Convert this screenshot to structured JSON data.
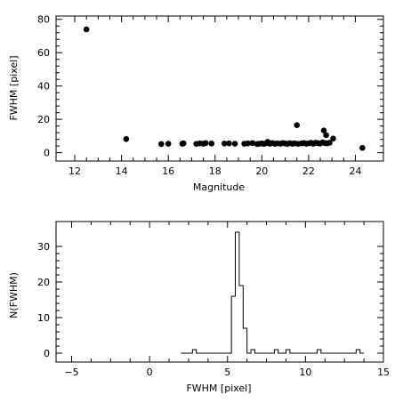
{
  "chart_data": [
    {
      "type": "scatter",
      "title": "",
      "xlabel": "Magnitude",
      "ylabel": "FWHM [pixel]",
      "xlim": [
        11.2,
        25.2
      ],
      "ylim": [
        -5,
        82
      ],
      "xticks": [
        12,
        14,
        16,
        18,
        20,
        22,
        24
      ],
      "yticks": [
        0,
        20,
        40,
        60,
        80
      ],
      "grid": false,
      "legend": "none",
      "marker_color": "#000000",
      "points": [
        [
          12.5,
          74
        ],
        [
          14.2,
          8.2
        ],
        [
          15.7,
          5.2
        ],
        [
          16.0,
          5.4
        ],
        [
          16.6,
          5.4
        ],
        [
          16.65,
          5.6
        ],
        [
          17.2,
          5.3
        ],
        [
          17.35,
          5.6
        ],
        [
          17.5,
          5.4
        ],
        [
          17.6,
          5.8
        ],
        [
          17.85,
          5.5
        ],
        [
          18.4,
          5.5
        ],
        [
          18.6,
          5.6
        ],
        [
          18.85,
          5.4
        ],
        [
          19.25,
          5.4
        ],
        [
          19.4,
          5.6
        ],
        [
          19.6,
          5.8
        ],
        [
          19.8,
          5.2
        ],
        [
          19.9,
          5.4
        ],
        [
          20.0,
          5.6
        ],
        [
          20.1,
          5.3
        ],
        [
          20.2,
          5.7
        ],
        [
          20.25,
          6.5
        ],
        [
          20.35,
          5.4
        ],
        [
          20.45,
          5.8
        ],
        [
          20.55,
          5.3
        ],
        [
          20.65,
          5.6
        ],
        [
          20.8,
          5.4
        ],
        [
          20.9,
          5.8
        ],
        [
          21.0,
          5.5
        ],
        [
          21.1,
          5.3
        ],
        [
          21.2,
          5.7
        ],
        [
          21.3,
          5.4
        ],
        [
          21.4,
          5.6
        ],
        [
          21.5,
          16.5
        ],
        [
          21.55,
          5.3
        ],
        [
          21.7,
          5.6
        ],
        [
          21.8,
          5.8
        ],
        [
          21.9,
          5.4
        ],
        [
          22.0,
          5.6
        ],
        [
          22.1,
          5.9
        ],
        [
          22.2,
          5.4
        ],
        [
          22.3,
          6.0
        ],
        [
          22.4,
          5.7
        ],
        [
          22.5,
          5.5
        ],
        [
          22.6,
          6.2
        ],
        [
          22.65,
          13.3
        ],
        [
          22.7,
          5.8
        ],
        [
          22.75,
          10.5
        ],
        [
          22.8,
          5.6
        ],
        [
          22.9,
          6.0
        ],
        [
          23.05,
          8.5
        ],
        [
          24.3,
          2.9
        ]
      ]
    },
    {
      "type": "histogram",
      "title": "",
      "xlabel": "FWHM [pixel]",
      "ylabel": "N(FWHM)",
      "xlim": [
        -6,
        15
      ],
      "ylim": [
        -2.5,
        37
      ],
      "xticks": [
        -5,
        0,
        5,
        10,
        15
      ],
      "yticks": [
        0,
        10,
        20,
        30
      ],
      "grid": false,
      "legend": "none",
      "bin_width": 0.25,
      "bin_start": 2.0,
      "counts": [
        0,
        0,
        0,
        1,
        0,
        0,
        0,
        0,
        0,
        0,
        0,
        0,
        0,
        16,
        34,
        19,
        7,
        0,
        1,
        0,
        0,
        0,
        0,
        0,
        1,
        0,
        0,
        1,
        0,
        0,
        0,
        0,
        0,
        0,
        0,
        1,
        0,
        0,
        0,
        0,
        0,
        0,
        0,
        0,
        0,
        1,
        0
      ]
    }
  ]
}
